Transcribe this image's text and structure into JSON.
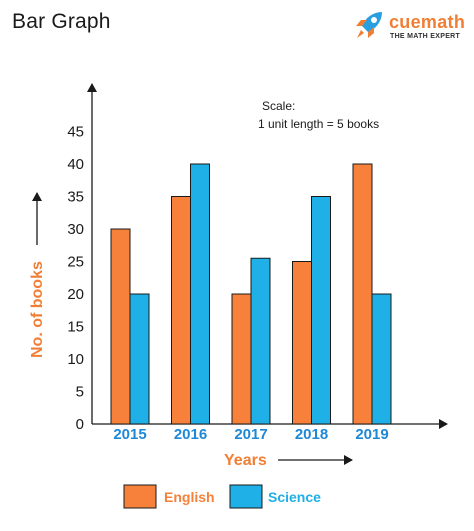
{
  "page": {
    "title": "Bar Graph"
  },
  "brand": {
    "name": "cuemath",
    "tagline": "THE MATH EXPERT",
    "logo_icon": "rocket-icon",
    "color_primary": "#f07f35",
    "color_secondary": "#2a9fe0"
  },
  "chart_data": {
    "type": "bar",
    "categories": [
      "2015",
      "2016",
      "2017",
      "2018",
      "2019"
    ],
    "series": [
      {
        "name": "English",
        "values": [
          30,
          35,
          20,
          25,
          40
        ],
        "color": "#f7813b"
      },
      {
        "name": "Science",
        "values": [
          20,
          40,
          25.5,
          35,
          20
        ],
        "color": "#1fb0e8"
      }
    ],
    "title": "",
    "xlabel": "Years",
    "ylabel": "No. of books",
    "ylim": [
      0,
      50
    ],
    "yticks": [
      0,
      5,
      10,
      15,
      20,
      25,
      30,
      35,
      40,
      45
    ],
    "axis_title_color": "#f07f35",
    "category_label_color": "#1e88d6",
    "grid": false,
    "legend": "bottom-center",
    "annotation": {
      "line1": "Scale:",
      "line2": "1 unit length = 5 books"
    }
  }
}
